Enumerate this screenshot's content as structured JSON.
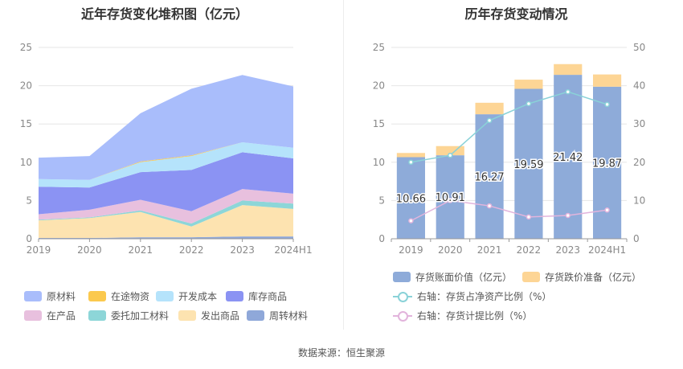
{
  "source": "数据来源：恒生聚源",
  "chart_data": [
    {
      "type": "area",
      "title": "近年存货变化堆积图（亿元）",
      "categories": [
        "2019",
        "2020",
        "2021",
        "2022",
        "2023",
        "2024H1"
      ],
      "ylim": [
        0,
        25
      ],
      "yticks": [
        "0",
        "5",
        "10",
        "15",
        "20",
        "25"
      ],
      "stacked": true,
      "series": [
        {
          "name": "原材料",
          "color": "#a9bdfb",
          "values": [
            2.8,
            3.1,
            6.3,
            8.7,
            8.8,
            8.0
          ]
        },
        {
          "name": "在途物资",
          "color": "#fbc94e",
          "values": [
            0.0,
            0.0,
            0.1,
            0.1,
            0.0,
            0.0
          ]
        },
        {
          "name": "开发成本",
          "color": "#b5e3fb",
          "values": [
            1.0,
            1.0,
            1.3,
            1.8,
            1.3,
            1.4
          ]
        },
        {
          "name": "库存商品",
          "color": "#8b93f3",
          "values": [
            3.6,
            2.9,
            3.6,
            5.4,
            4.8,
            4.6
          ]
        },
        {
          "name": "在产品",
          "color": "#e8c0de",
          "values": [
            0.7,
            1.0,
            1.4,
            1.6,
            1.5,
            1.3
          ]
        },
        {
          "name": "委托加工材料",
          "color": "#8dd6d8",
          "values": [
            0.1,
            0.1,
            0.2,
            0.4,
            0.6,
            0.7
          ]
        },
        {
          "name": "发出商品",
          "color": "#fde3b0",
          "values": [
            2.3,
            2.6,
            3.3,
            1.4,
            4.1,
            3.6
          ]
        },
        {
          "name": "周转材料",
          "color": "#8fa8d9",
          "values": [
            0.1,
            0.1,
            0.2,
            0.2,
            0.3,
            0.3
          ]
        }
      ]
    },
    {
      "type": "bar",
      "title": "历年存货变动情况",
      "categories": [
        "2019",
        "2020",
        "2021",
        "2022",
        "2023",
        "2024H1"
      ],
      "ylim": [
        0,
        25
      ],
      "yticks": [
        "0",
        "5",
        "10",
        "15",
        "20",
        "25"
      ],
      "y2lim": [
        0,
        50
      ],
      "y2ticks": [
        "0",
        "10",
        "20",
        "30",
        "40",
        "50"
      ],
      "series": [
        {
          "name": "存货账面价值（亿元）",
          "color": "#8eabd9",
          "values": [
            10.66,
            10.91,
            16.27,
            19.59,
            21.42,
            19.87
          ],
          "labels": [
            "10.66",
            "10.91",
            "16.27",
            "19.59",
            "21.42",
            "19.87"
          ]
        },
        {
          "name": "存货跌价准备（亿元）",
          "color": "#fdd595",
          "values": [
            0.55,
            1.2,
            1.5,
            1.2,
            1.4,
            1.6
          ]
        },
        {
          "name": "右轴：存货占净资产比例（%）",
          "color": "#8ad2d8",
          "axis": "right",
          "values": [
            20.0,
            21.8,
            30.9,
            35.3,
            38.4,
            35.1
          ]
        },
        {
          "name": "右轴：存货计提比例（%）",
          "color": "#e2b4dc",
          "axis": "right",
          "values": [
            4.7,
            10.0,
            8.6,
            5.7,
            6.1,
            7.5
          ]
        }
      ]
    }
  ]
}
